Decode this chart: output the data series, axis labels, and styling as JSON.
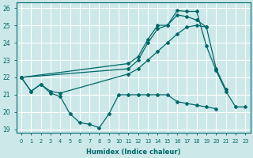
{
  "xlabel": "Humidex (Indice chaleur)",
  "background_color": "#cce8e8",
  "grid_color": "#ffffff",
  "line_color": "#006868",
  "xlim": [
    -0.5,
    23.5
  ],
  "ylim": [
    18.8,
    26.3
  ],
  "yticks": [
    19,
    20,
    21,
    22,
    23,
    24,
    25,
    26
  ],
  "xticks": [
    0,
    1,
    2,
    3,
    4,
    5,
    6,
    7,
    8,
    9,
    10,
    11,
    12,
    13,
    14,
    15,
    16,
    17,
    18,
    19,
    20,
    21,
    22,
    23
  ],
  "series": [
    {
      "x": [
        0,
        1,
        2,
        3,
        4,
        5,
        6,
        7,
        8,
        9,
        10,
        11,
        12,
        13,
        14,
        15,
        16,
        17,
        18,
        19,
        20
      ],
      "y": [
        22.0,
        21.2,
        21.6,
        21.1,
        20.9,
        19.9,
        19.4,
        19.3,
        19.1,
        19.9,
        21.0,
        21.0,
        21.0,
        21.0,
        21.0,
        21.0,
        20.6,
        20.5,
        20.4,
        20.3,
        20.2
      ]
    },
    {
      "x": [
        0,
        1,
        2,
        3,
        4,
        11,
        12,
        13,
        14,
        15,
        16,
        17,
        18,
        19
      ],
      "y": [
        22.0,
        21.2,
        21.6,
        21.2,
        21.1,
        22.2,
        22.5,
        23.0,
        23.5,
        24.0,
        24.5,
        24.9,
        25.0,
        24.9
      ]
    },
    {
      "x": [
        0,
        11,
        12,
        13,
        14,
        15,
        16,
        17,
        18,
        19,
        20,
        21
      ],
      "y": [
        22.0,
        22.5,
        23.0,
        24.0,
        24.8,
        25.0,
        25.6,
        25.5,
        25.3,
        24.9,
        22.5,
        21.3
      ]
    },
    {
      "x": [
        0,
        11,
        12,
        13,
        14,
        15,
        16,
        17,
        18,
        19,
        20,
        21,
        22,
        23
      ],
      "y": [
        22.0,
        22.8,
        23.2,
        24.2,
        25.0,
        25.0,
        25.85,
        25.8,
        25.8,
        23.8,
        22.4,
        21.2,
        20.3,
        20.3
      ]
    }
  ]
}
